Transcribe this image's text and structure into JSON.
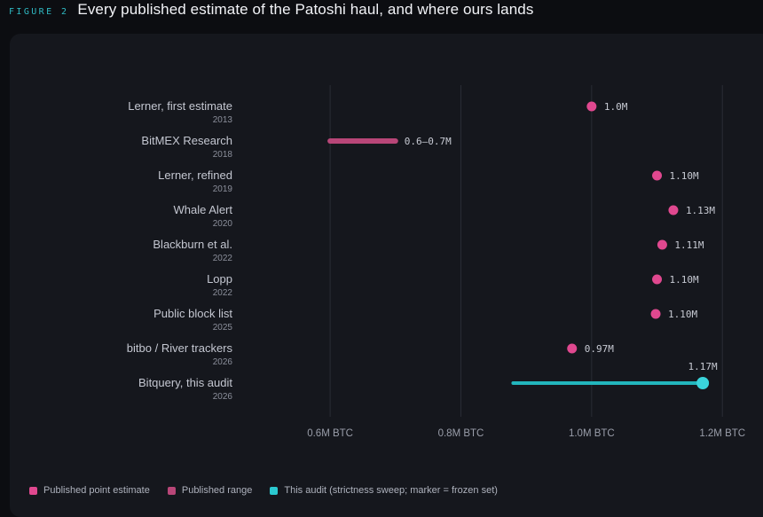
{
  "figure": {
    "tag": "FIGURE 2",
    "title": "Every published estimate of the Patoshi haul, and where ours lands"
  },
  "colors": {
    "point": "#e0488f",
    "range": "#b84678",
    "audit": "#22b6bd",
    "audit_marker": "#3ad3da",
    "grid": "#2a2d35"
  },
  "legend": [
    {
      "label": "Published point estimate",
      "color": "#e0488f"
    },
    {
      "label": "Published range",
      "color": "#b84678"
    },
    {
      "label": "This audit (strictness sweep; marker = frozen set)",
      "color": "#2bc9d0"
    }
  ],
  "chart_data": {
    "type": "dot",
    "orientation": "horizontal",
    "xlabel": "",
    "ylabel": "",
    "xlim": [
      0.532,
      1.235
    ],
    "x_ticks": [
      0.6,
      0.8,
      1.0,
      1.2
    ],
    "x_tick_labels": [
      "0.6M BTC",
      "0.8M BTC",
      "1.0M BTC",
      "1.2M BTC"
    ],
    "grid": "vertical",
    "legend_position": "bottom",
    "rows": [
      {
        "label": "Lerner, first estimate",
        "year": "2013",
        "kind": "point",
        "value": 1.0,
        "value_label": "1.0M"
      },
      {
        "label": "BitMEX Research",
        "year": "2018",
        "kind": "range",
        "min": 0.6,
        "max": 0.7,
        "value_label": "0.6–0.7M"
      },
      {
        "label": "Lerner, refined",
        "year": "2019",
        "kind": "point",
        "value": 1.1,
        "value_label": "1.10M"
      },
      {
        "label": "Whale Alert",
        "year": "2020",
        "kind": "point",
        "value": 1.125,
        "value_label": "1.13M"
      },
      {
        "label": "Blackburn et al.",
        "year": "2022",
        "kind": "point",
        "value": 1.108,
        "value_label": "1.11M"
      },
      {
        "label": "Lopp",
        "year": "2022",
        "kind": "point",
        "value": 1.1,
        "value_label": "1.10M"
      },
      {
        "label": "Public block list",
        "year": "2025",
        "kind": "point",
        "value": 1.098,
        "value_label": "1.10M"
      },
      {
        "label": "bitbo / River trackers",
        "year": "2026",
        "kind": "point",
        "value": 0.97,
        "value_label": "0.97M"
      },
      {
        "label": "Bitquery, this audit",
        "year": "2026",
        "kind": "audit",
        "min": 0.88,
        "max": 1.17,
        "marker": 1.17,
        "value_label": "1.17M"
      }
    ]
  }
}
